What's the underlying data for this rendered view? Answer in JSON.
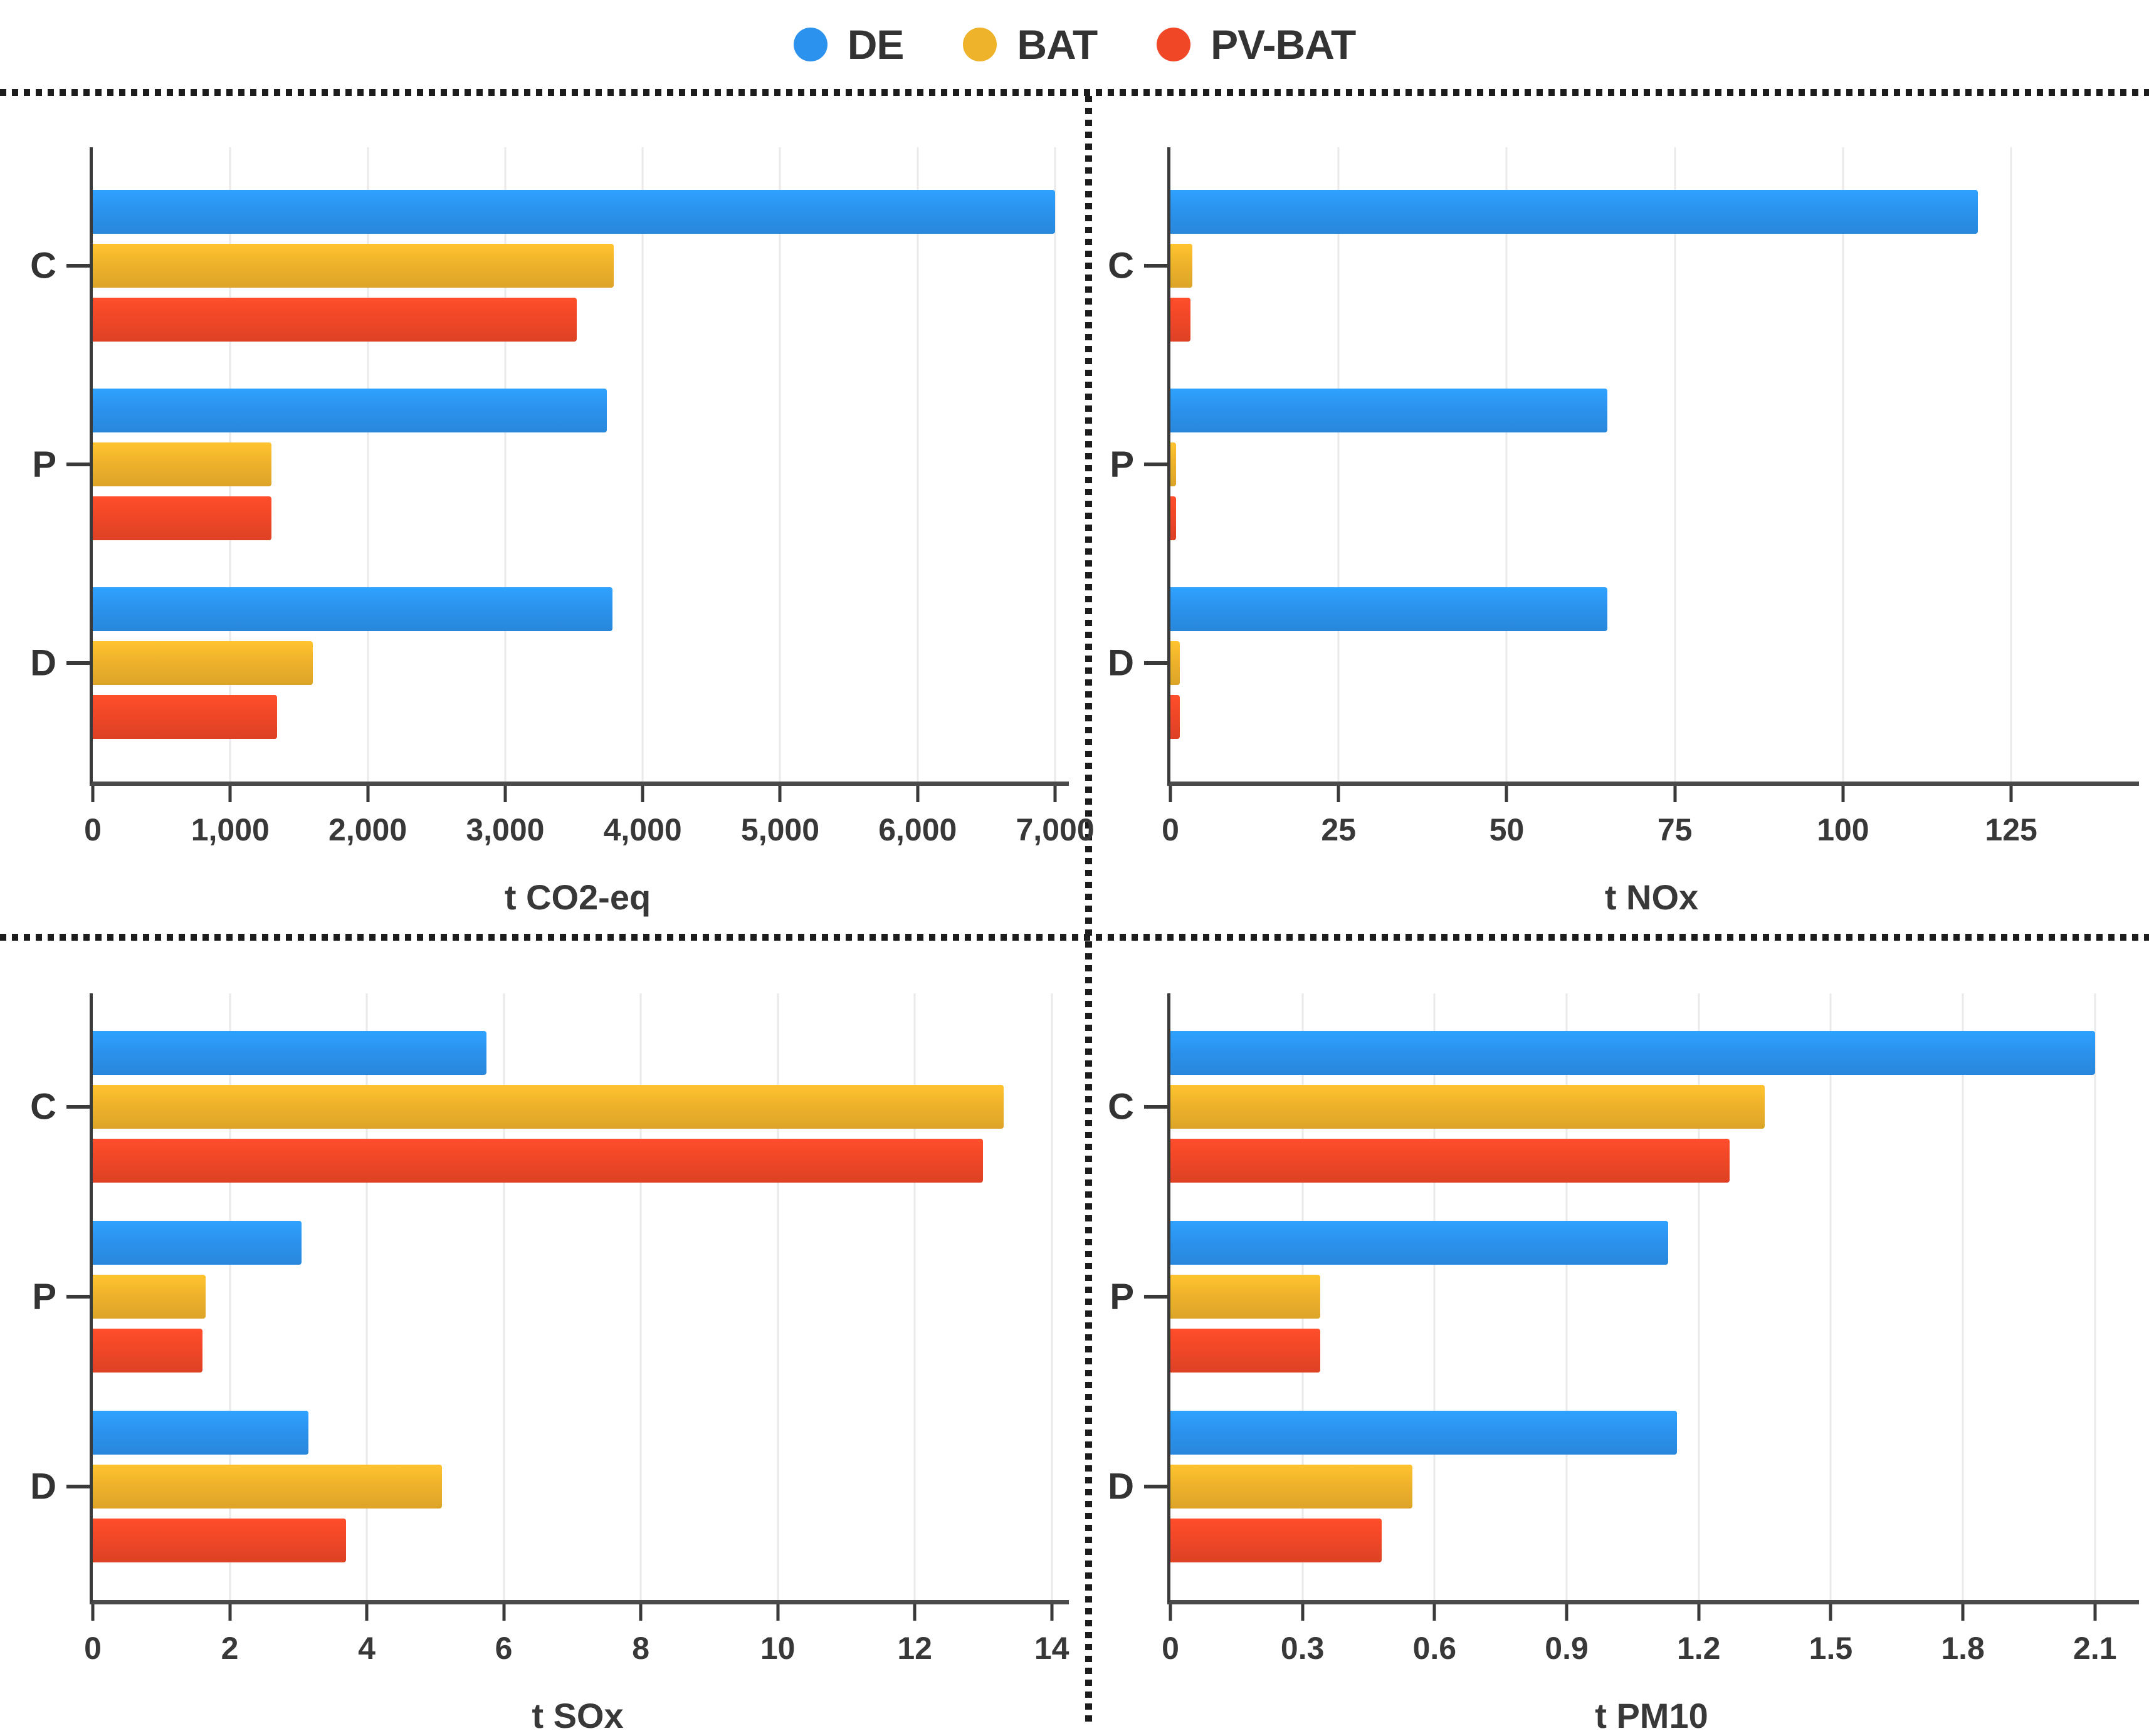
{
  "legend": {
    "items": [
      {
        "label": "DE",
        "color": "#2B93EE"
      },
      {
        "label": "BAT",
        "color": "#EFB22B"
      },
      {
        "label": "PV-BAT",
        "color": "#F04727"
      }
    ]
  },
  "chart_data": [
    {
      "type": "bar",
      "orientation": "horizontal",
      "xlabel": "t CO2-eq",
      "categories": [
        "C",
        "P",
        "D"
      ],
      "series": [
        {
          "name": "DE",
          "values": [
            7000,
            3740,
            3780
          ]
        },
        {
          "name": "BAT",
          "values": [
            3790,
            1300,
            1600
          ]
        },
        {
          "name": "PV-BAT",
          "values": [
            3520,
            1300,
            1340
          ]
        }
      ],
      "ticks": [
        0,
        1000,
        2000,
        3000,
        4000,
        5000,
        6000,
        7000
      ],
      "tick_labels": [
        "0",
        "1,000",
        "2,000",
        "3,000",
        "4,000",
        "5,000",
        "6,000",
        "7,000"
      ],
      "xlim": [
        0,
        7100
      ],
      "grid": true,
      "legend_position": "top-shared"
    },
    {
      "type": "bar",
      "orientation": "horizontal",
      "xlabel": "t NOx",
      "categories": [
        "C",
        "P",
        "D"
      ],
      "series": [
        {
          "name": "DE",
          "values": [
            120,
            65,
            65
          ]
        },
        {
          "name": "BAT",
          "values": [
            3.3,
            0.8,
            1.4
          ]
        },
        {
          "name": "PV-BAT",
          "values": [
            3.0,
            0.8,
            1.4
          ]
        }
      ],
      "ticks": [
        0,
        25,
        50,
        75,
        100,
        125
      ],
      "tick_labels": [
        "0",
        "25",
        "50",
        "75",
        "100",
        "125"
      ],
      "xlim": [
        0,
        144
      ],
      "grid": true,
      "legend_position": "top-shared"
    },
    {
      "type": "bar",
      "orientation": "horizontal",
      "xlabel": "t SOx",
      "categories": [
        "C",
        "P",
        "D"
      ],
      "series": [
        {
          "name": "DE",
          "values": [
            5.75,
            3.05,
            3.15
          ]
        },
        {
          "name": "BAT",
          "values": [
            13.3,
            1.65,
            5.1
          ]
        },
        {
          "name": "PV-BAT",
          "values": [
            13.0,
            1.6,
            3.7
          ]
        }
      ],
      "ticks": [
        0,
        2,
        4,
        6,
        8,
        10,
        12,
        14
      ],
      "tick_labels": [
        "0",
        "2",
        "4",
        "6",
        "8",
        "10",
        "12",
        "14"
      ],
      "xlim": [
        0,
        14.25
      ],
      "grid": true,
      "legend_position": "top-shared"
    },
    {
      "type": "bar",
      "orientation": "horizontal",
      "xlabel": "t PM10",
      "categories": [
        "C",
        "P",
        "D"
      ],
      "series": [
        {
          "name": "DE",
          "values": [
            2.1,
            1.13,
            1.15
          ]
        },
        {
          "name": "BAT",
          "values": [
            1.35,
            0.34,
            0.55
          ]
        },
        {
          "name": "PV-BAT",
          "values": [
            1.27,
            0.34,
            0.48
          ]
        }
      ],
      "ticks": [
        0,
        0.3,
        0.6,
        0.9,
        1.2,
        1.5,
        1.8,
        2.1
      ],
      "tick_labels": [
        "0",
        "0.3",
        "0.6",
        "0.9",
        "1.2",
        "1.5",
        "1.8",
        "2.1"
      ],
      "xlim": [
        0,
        2.2
      ],
      "grid": true,
      "legend_position": "top-shared"
    }
  ]
}
